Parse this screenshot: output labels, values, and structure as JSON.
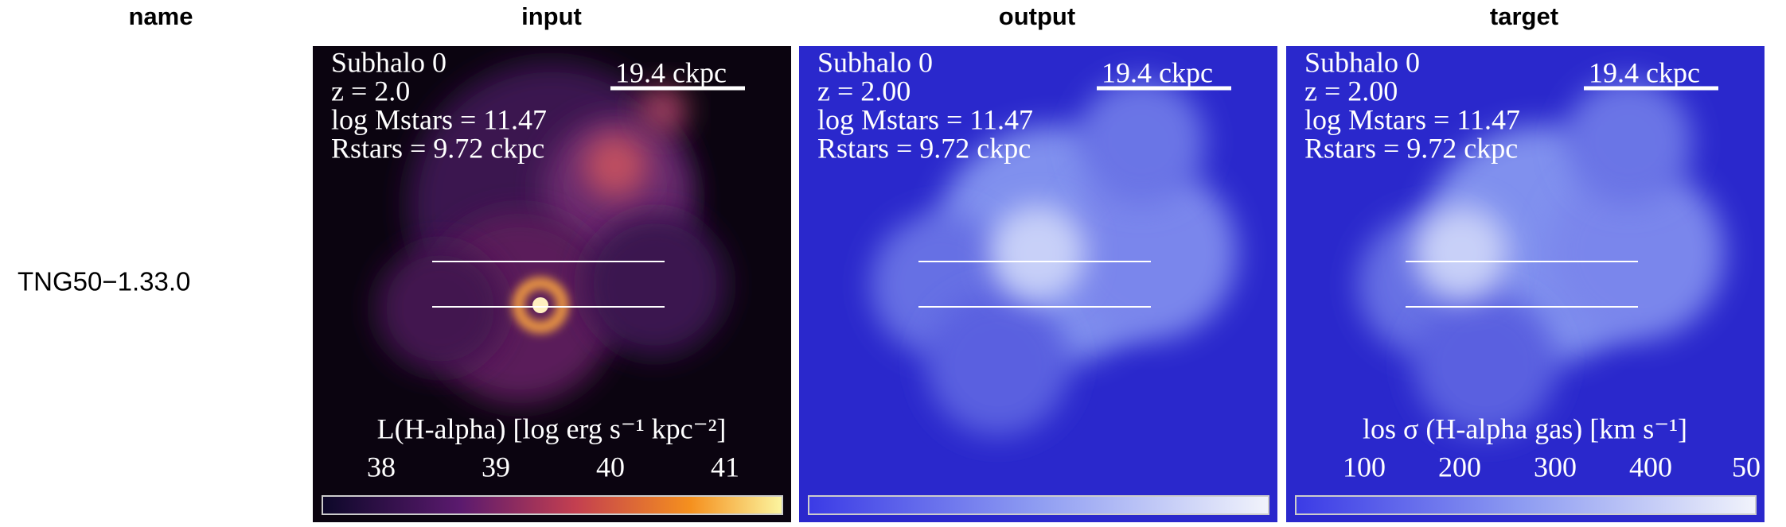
{
  "header": {
    "columns": [
      "name",
      "input",
      "output",
      "target"
    ]
  },
  "rows": [
    {
      "name": "TNG50−1.33.0",
      "panels": [
        {
          "lines": [
            "Subhalo 0",
            "z = 2.0",
            "log Mstars = 11.47",
            "Rstars = 9.72 ckpc"
          ],
          "scale": "19.4 ckpc",
          "colorbar_label": "L(H-alpha) [log erg s⁻¹ kpc⁻²]",
          "colorbar_ticks": [
            "38",
            "39",
            "40",
            "41"
          ]
        },
        {
          "lines": [
            "Subhalo 0",
            "z = 2.00",
            "log Mstars = 11.47",
            "Rstars = 9.72 ckpc"
          ],
          "scale": "19.4 ckpc"
        },
        {
          "lines": [
            "Subhalo 0",
            "z = 2.00",
            "log Mstars = 11.47",
            "Rstars = 9.72 ckpc"
          ],
          "scale": "19.4 ckpc",
          "colorbar_label": "los σ (H-alpha gas) [km s⁻¹]",
          "colorbar_ticks": [
            "100",
            "200",
            "300",
            "400",
            "50"
          ]
        }
      ]
    }
  ]
}
